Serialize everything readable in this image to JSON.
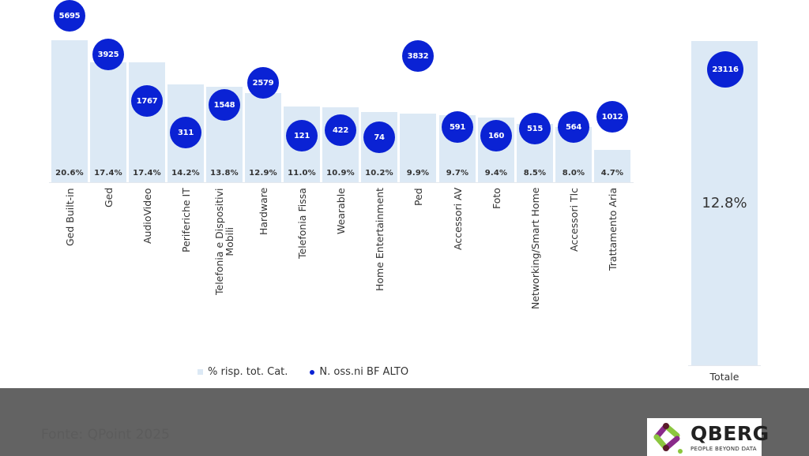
{
  "chart_data": {
    "type": "bar",
    "title": "",
    "xlabel": "",
    "ylabel": "",
    "categories": [
      "Ged Built-in",
      "Ged",
      "AudioVideo",
      "Periferiche IT",
      "Telefonia e Dispositivi Mobili",
      "Hardware",
      "Telefonia Fissa",
      "Wearable",
      "Home Entertainment",
      "Ped",
      "Accessori AV",
      "Foto",
      "Networking/Smart Home",
      "Accessori Tlc",
      "Trattamento Aria"
    ],
    "series": [
      {
        "name": "% risp. tot. Cat.",
        "kind": "bar",
        "unit": "%",
        "values": [
          20.6,
          17.4,
          17.4,
          14.2,
          13.8,
          12.9,
          11.0,
          10.9,
          10.2,
          9.9,
          9.7,
          9.4,
          8.5,
          8.0,
          4.7
        ]
      },
      {
        "name": "N. oss.ni BF ALTO",
        "kind": "bubble",
        "values": [
          5695,
          3925,
          1767,
          311,
          1548,
          2579,
          121,
          422,
          74,
          3832,
          591,
          160,
          515,
          564,
          1012
        ]
      }
    ],
    "total": {
      "label": "Totale",
      "percent": 12.8,
      "count": 23116
    },
    "legend_position": "bottom",
    "grid": false,
    "colors": {
      "bar": "#dce9f5",
      "bubble": "#0a22d4"
    }
  },
  "pct_labels": [
    "20.6%",
    "17.4%",
    "17.4%",
    "14.2%",
    "13.8%",
    "12.9%",
    "11.0%",
    "10.9%",
    "10.2%",
    "9.9%",
    "9.7%",
    "9.4%",
    "8.5%",
    "8.0%",
    "4.7%"
  ],
  "count_labels": [
    "5695",
    "3925",
    "1767",
    "311",
    "1548",
    "2579",
    "121",
    "422",
    "74",
    "3832",
    "591",
    "160",
    "515",
    "564",
    "1012"
  ],
  "category_labels": [
    "Ged Built-in",
    "Ged",
    "AudioVideo",
    "Periferiche IT",
    "Telefonia e Dispositivi",
    "Hardware",
    "Telefonia Fissa",
    "Wearable",
    "Home Entertainment",
    "Ped",
    "Accessori AV",
    "Foto",
    "Networking/Smart Home",
    "Accessori Tlc",
    "Trattamento Aria"
  ],
  "category_label_line2": {
    "4": "Mobili"
  },
  "legend": {
    "bar_label": "% risp. tot. Cat.",
    "bubble_label": "N. oss.ni BF ALTO"
  },
  "total": {
    "label": "Totale",
    "pct_label": "12.8%",
    "count_label": "23116"
  },
  "footer": {
    "source": "Fonte: QPoint 2025",
    "logo_brand": "QBERG",
    "logo_tagline": "PEOPLE BEYOND DATA"
  }
}
